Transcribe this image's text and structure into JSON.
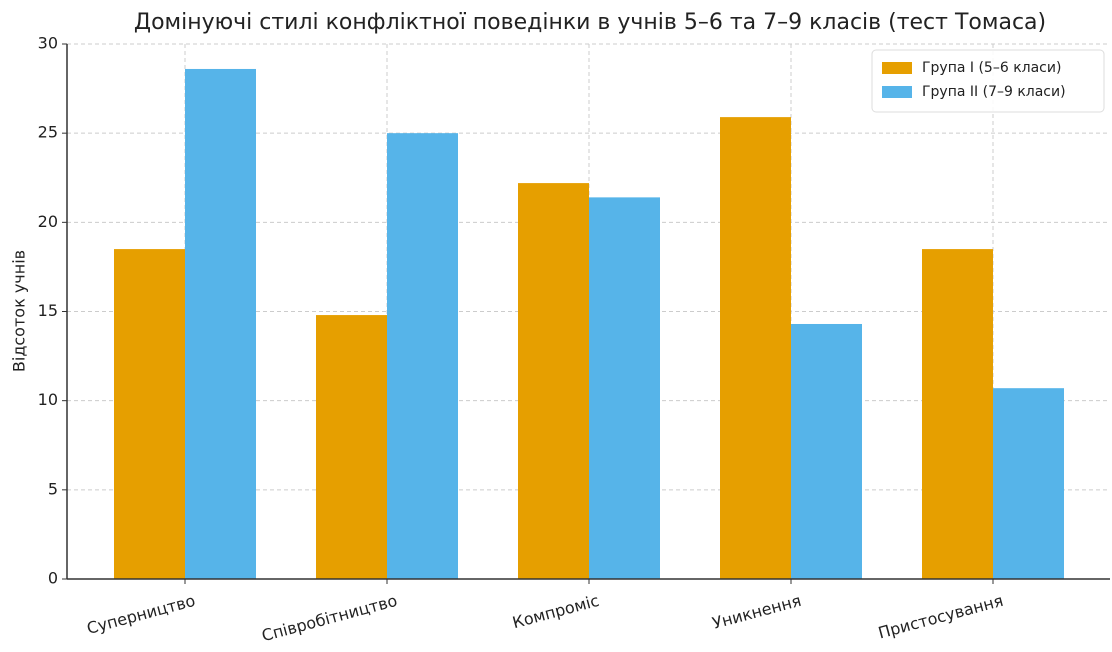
{
  "chart_data": {
    "type": "bar",
    "title": "Домінуючі стилі конфліктної поведінки в учнів 5–6 та 7–9 класів (тест Томаса)",
    "y_label": "Відсоток учнів",
    "categories": [
      "Суперництво",
      "Співробітництво",
      "Компроміс",
      "Уникнення",
      "Пристосування"
    ],
    "series": [
      {
        "name": "Група I (5–6 класи)",
        "color": "#E69F00",
        "values": [
          18.5,
          14.8,
          22.2,
          25.9,
          18.5
        ]
      },
      {
        "name": "Група II (7–9 класи)",
        "color": "#56B4E9",
        "values": [
          28.6,
          25.0,
          21.4,
          14.3,
          10.7
        ]
      }
    ],
    "ylim": [
      0,
      30
    ],
    "yticks": [
      0,
      5,
      10,
      15,
      20,
      25,
      30
    ],
    "grid": true,
    "legend": "upper right"
  }
}
